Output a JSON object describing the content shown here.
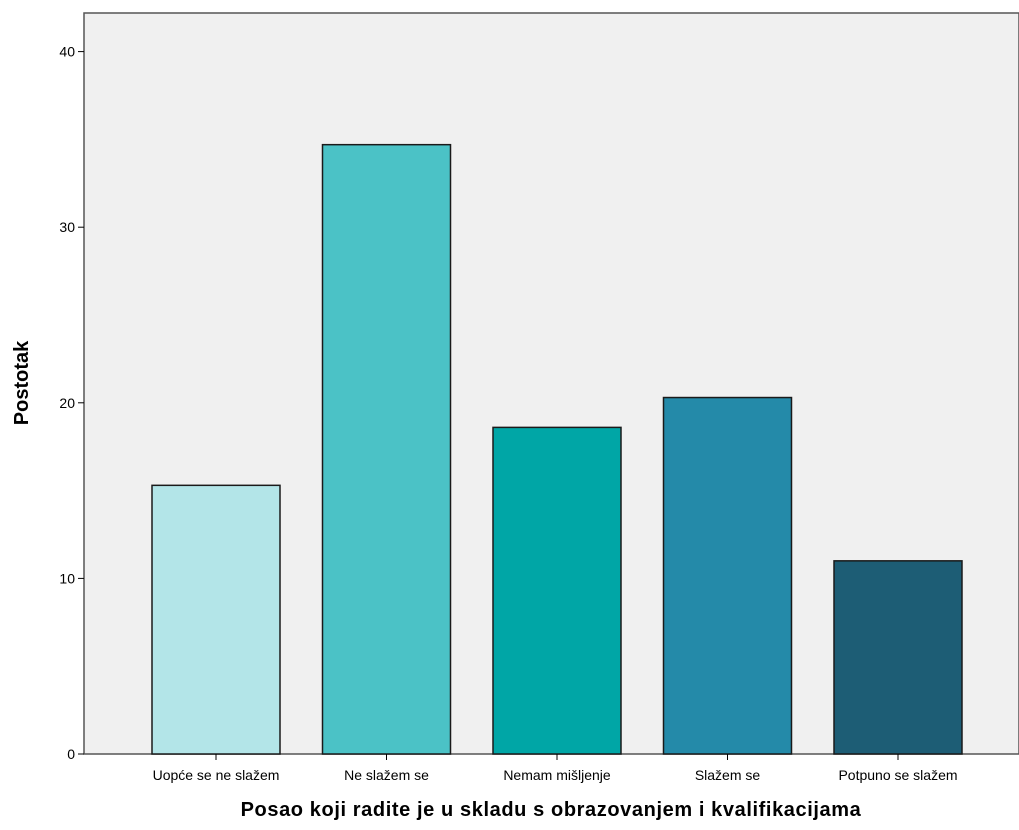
{
  "chart_data": {
    "type": "bar",
    "categories": [
      "Uopće se ne slažem",
      "Ne slažem se",
      "Nemam mišljenje",
      "Slažem se",
      "Potpuno se slažem"
    ],
    "values": [
      15.3,
      34.7,
      18.6,
      20.3,
      11.0
    ],
    "colors": [
      "#b3e5e8",
      "#4bc2c6",
      "#00a6a6",
      "#248aa9",
      "#1d5d75"
    ],
    "xlabel": "Posao koji radite je u skladu s obrazovanjem i kvalifikacijama",
    "ylabel": "Postotak",
    "ylim": [
      0,
      42
    ],
    "yticks": [
      0,
      10,
      20,
      30,
      40
    ],
    "plot_background": "#f0f0f0",
    "grid": false,
    "legend": "none"
  }
}
